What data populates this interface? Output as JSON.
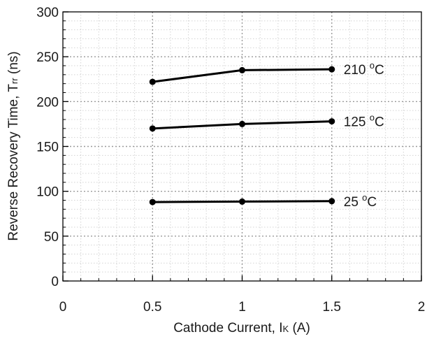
{
  "chart_data": {
    "type": "line",
    "xlabel": {
      "main": "Cathode Current, I",
      "sub": "K",
      "tail": " (A)"
    },
    "ylabel": {
      "main": "Reverse Recovery Time, T",
      "sub": "rr",
      "tail": " (ns)"
    },
    "xlim": [
      0,
      2
    ],
    "ylim": [
      0,
      300
    ],
    "x_ticks": [
      0,
      0.5,
      1,
      1.5,
      2
    ],
    "x_tick_labels": [
      "0",
      "0.5",
      "1",
      "1.5",
      "2"
    ],
    "y_ticks": [
      0,
      50,
      100,
      150,
      200,
      250,
      300
    ],
    "y_tick_labels": [
      "0",
      "50",
      "100",
      "150",
      "200",
      "250",
      "300"
    ],
    "grid": true,
    "x": [
      0.5,
      1,
      1.5
    ],
    "series": [
      {
        "name": {
          "value": "210 ",
          "sup": "o",
          "unit": "C"
        },
        "values": [
          222,
          235,
          236
        ],
        "color": "#000000"
      },
      {
        "name": {
          "value": "125 ",
          "sup": "o",
          "unit": "C"
        },
        "values": [
          170,
          175,
          178
        ],
        "color": "#000000"
      },
      {
        "name": {
          "value": "25 ",
          "sup": "o",
          "unit": "C"
        },
        "values": [
          88,
          88.5,
          89
        ],
        "color": "#000000"
      }
    ]
  }
}
